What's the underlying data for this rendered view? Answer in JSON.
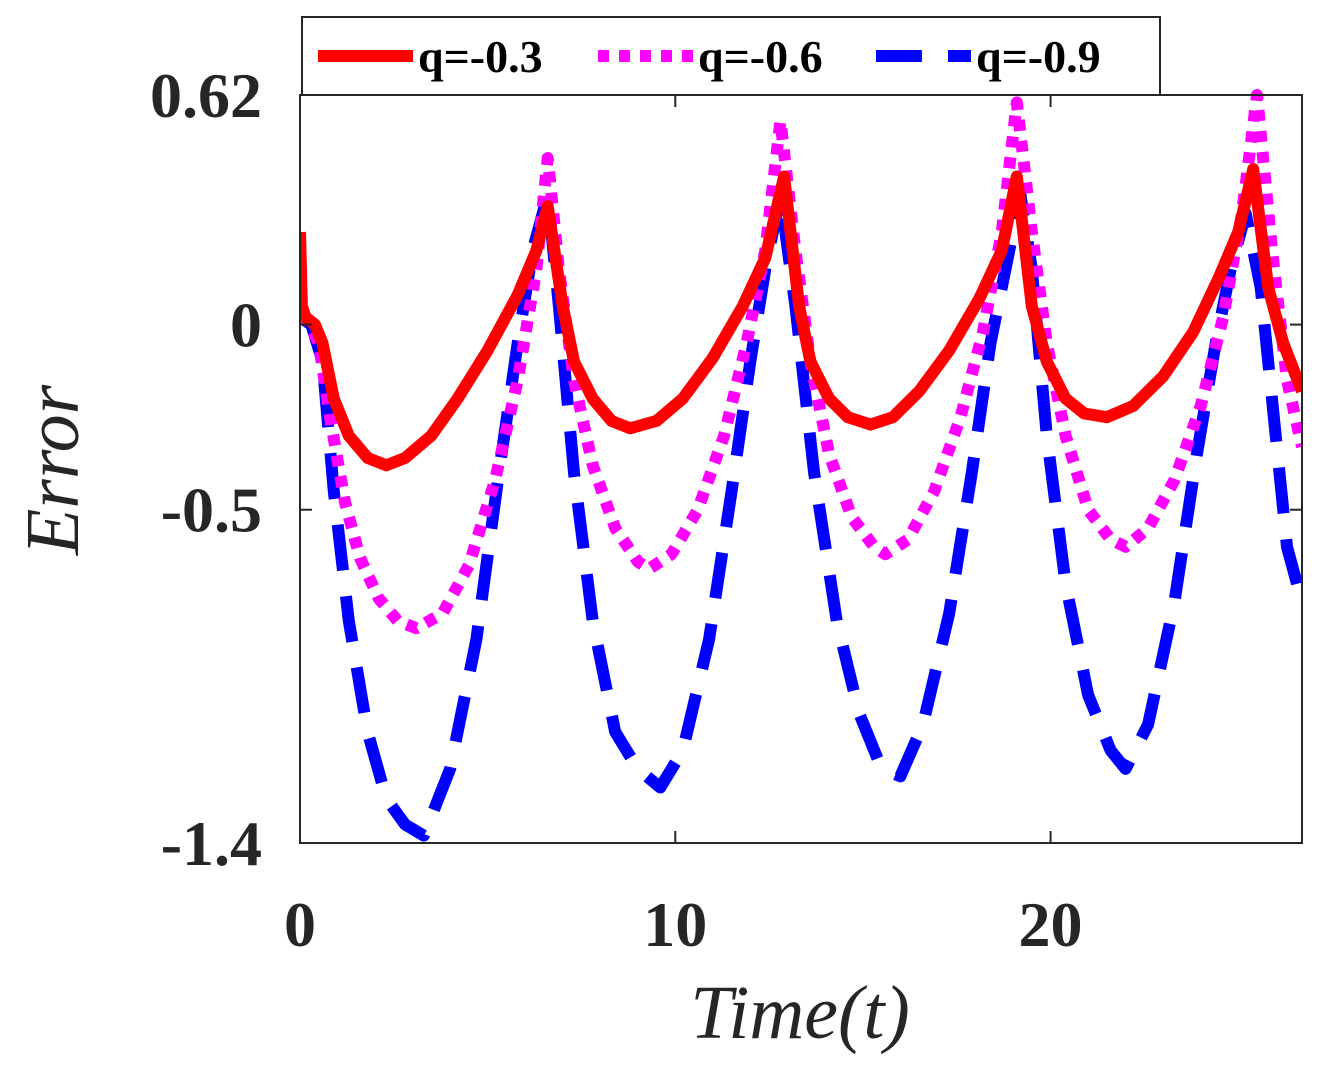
{
  "chart_data": {
    "type": "line",
    "xlabel": "Time(t)",
    "ylabel": "Error",
    "xlim": [
      0,
      26.7
    ],
    "ylim": [
      -1.4,
      0.62
    ],
    "xticks": [
      {
        "value": 0,
        "label": "0"
      },
      {
        "value": 10,
        "label": "10"
      },
      {
        "value": 20,
        "label": "20"
      }
    ],
    "yticks": [
      {
        "value": 0.62,
        "label": "0.62"
      },
      {
        "value": 0,
        "label": "0"
      },
      {
        "value": -0.5,
        "label": "-0.5"
      },
      {
        "value": -1.4,
        "label": "-1.4"
      }
    ],
    "grid": false,
    "legend_position": "top",
    "series": [
      {
        "name": "q=-0.3",
        "color": "#ff0000",
        "style": "solid",
        "points": [
          [
            0.0,
            0.25
          ],
          [
            0.05,
            0.05
          ],
          [
            0.15,
            0.02
          ],
          [
            0.4,
            0.0
          ],
          [
            0.6,
            -0.05
          ],
          [
            0.9,
            -0.2
          ],
          [
            1.3,
            -0.3
          ],
          [
            1.8,
            -0.36
          ],
          [
            2.3,
            -0.38
          ],
          [
            2.8,
            -0.36
          ],
          [
            3.5,
            -0.3
          ],
          [
            4.2,
            -0.2
          ],
          [
            5.0,
            -0.07
          ],
          [
            5.8,
            0.08
          ],
          [
            6.3,
            0.2
          ],
          [
            6.6,
            0.32
          ],
          [
            7.0,
            0.05
          ],
          [
            7.3,
            -0.1
          ],
          [
            7.8,
            -0.2
          ],
          [
            8.3,
            -0.26
          ],
          [
            8.8,
            -0.28
          ],
          [
            9.5,
            -0.26
          ],
          [
            10.2,
            -0.2
          ],
          [
            11.0,
            -0.09
          ],
          [
            11.8,
            0.05
          ],
          [
            12.4,
            0.18
          ],
          [
            12.9,
            0.4
          ],
          [
            13.3,
            0.05
          ],
          [
            13.6,
            -0.1
          ],
          [
            14.1,
            -0.2
          ],
          [
            14.6,
            -0.25
          ],
          [
            15.2,
            -0.27
          ],
          [
            15.8,
            -0.25
          ],
          [
            16.5,
            -0.18
          ],
          [
            17.3,
            -0.07
          ],
          [
            18.1,
            0.07
          ],
          [
            18.7,
            0.2
          ],
          [
            19.1,
            0.4
          ],
          [
            19.5,
            0.05
          ],
          [
            19.9,
            -0.1
          ],
          [
            20.4,
            -0.2
          ],
          [
            20.9,
            -0.24
          ],
          [
            21.5,
            -0.25
          ],
          [
            22.2,
            -0.22
          ],
          [
            23.0,
            -0.14
          ],
          [
            23.8,
            -0.02
          ],
          [
            24.5,
            0.13
          ],
          [
            25.0,
            0.25
          ],
          [
            25.4,
            0.42
          ],
          [
            25.8,
            0.1
          ],
          [
            26.2,
            -0.05
          ],
          [
            26.7,
            -0.18
          ]
        ]
      },
      {
        "name": "q=-0.6",
        "color": "#ff00ff",
        "style": "dotted",
        "points": [
          [
            0.0,
            0.02
          ],
          [
            0.2,
            0.01
          ],
          [
            0.5,
            -0.05
          ],
          [
            0.8,
            -0.25
          ],
          [
            1.2,
            -0.48
          ],
          [
            1.6,
            -0.63
          ],
          [
            2.1,
            -0.74
          ],
          [
            2.6,
            -0.8
          ],
          [
            3.1,
            -0.82
          ],
          [
            3.8,
            -0.78
          ],
          [
            4.5,
            -0.65
          ],
          [
            5.2,
            -0.42
          ],
          [
            5.8,
            -0.15
          ],
          [
            6.3,
            0.15
          ],
          [
            6.6,
            0.45
          ],
          [
            6.9,
            0.15
          ],
          [
            7.3,
            -0.15
          ],
          [
            7.8,
            -0.38
          ],
          [
            8.4,
            -0.55
          ],
          [
            9.0,
            -0.64
          ],
          [
            9.3,
            -0.66
          ],
          [
            9.9,
            -0.62
          ],
          [
            10.6,
            -0.5
          ],
          [
            11.3,
            -0.3
          ],
          [
            11.9,
            -0.05
          ],
          [
            12.4,
            0.2
          ],
          [
            12.8,
            0.55
          ],
          [
            13.2,
            0.2
          ],
          [
            13.6,
            -0.1
          ],
          [
            14.1,
            -0.35
          ],
          [
            14.7,
            -0.52
          ],
          [
            15.3,
            -0.6
          ],
          [
            15.6,
            -0.62
          ],
          [
            16.2,
            -0.58
          ],
          [
            16.9,
            -0.45
          ],
          [
            17.6,
            -0.25
          ],
          [
            18.2,
            -0.02
          ],
          [
            18.7,
            0.25
          ],
          [
            19.1,
            0.6
          ],
          [
            19.5,
            0.25
          ],
          [
            19.9,
            -0.05
          ],
          [
            20.4,
            -0.3
          ],
          [
            21.0,
            -0.5
          ],
          [
            21.6,
            -0.58
          ],
          [
            22.0,
            -0.6
          ],
          [
            22.6,
            -0.55
          ],
          [
            23.3,
            -0.42
          ],
          [
            24.0,
            -0.22
          ],
          [
            24.6,
            0.02
          ],
          [
            25.1,
            0.3
          ],
          [
            25.5,
            0.62
          ],
          [
            25.9,
            0.2
          ],
          [
            26.3,
            -0.15
          ],
          [
            26.7,
            -0.33
          ]
        ]
      },
      {
        "name": "q=-0.9",
        "color": "#0000ff",
        "style": "dashed",
        "points": [
          [
            0.0,
            0.02
          ],
          [
            0.3,
            0.0
          ],
          [
            0.6,
            -0.1
          ],
          [
            0.9,
            -0.45
          ],
          [
            1.3,
            -0.8
          ],
          [
            1.8,
            -1.1
          ],
          [
            2.3,
            -1.28
          ],
          [
            2.8,
            -1.35
          ],
          [
            3.3,
            -1.38
          ],
          [
            4.0,
            -1.2
          ],
          [
            4.7,
            -0.85
          ],
          [
            5.3,
            -0.4
          ],
          [
            5.8,
            -0.05
          ],
          [
            6.2,
            0.2
          ],
          [
            6.6,
            0.35
          ],
          [
            6.9,
            0.05
          ],
          [
            7.3,
            -0.4
          ],
          [
            7.8,
            -0.8
          ],
          [
            8.4,
            -1.1
          ],
          [
            9.0,
            -1.2
          ],
          [
            9.6,
            -1.25
          ],
          [
            10.2,
            -1.15
          ],
          [
            10.9,
            -0.85
          ],
          [
            11.5,
            -0.45
          ],
          [
            12.0,
            -0.1
          ],
          [
            12.4,
            0.15
          ],
          [
            12.8,
            0.35
          ],
          [
            13.2,
            0.05
          ],
          [
            13.7,
            -0.4
          ],
          [
            14.3,
            -0.8
          ],
          [
            14.9,
            -1.05
          ],
          [
            15.5,
            -1.2
          ],
          [
            16.0,
            -1.22
          ],
          [
            16.6,
            -1.08
          ],
          [
            17.3,
            -0.78
          ],
          [
            17.9,
            -0.4
          ],
          [
            18.4,
            -0.05
          ],
          [
            18.8,
            0.15
          ],
          [
            19.2,
            0.35
          ],
          [
            19.5,
            0.15
          ],
          [
            19.9,
            -0.3
          ],
          [
            20.4,
            -0.7
          ],
          [
            21.0,
            -1.0
          ],
          [
            21.6,
            -1.15
          ],
          [
            22.0,
            -1.2
          ],
          [
            22.6,
            -1.08
          ],
          [
            23.3,
            -0.75
          ],
          [
            23.9,
            -0.35
          ],
          [
            24.4,
            -0.05
          ],
          [
            24.8,
            0.15
          ],
          [
            25.2,
            0.3
          ],
          [
            25.6,
            0.1
          ],
          [
            26.0,
            -0.3
          ],
          [
            26.3,
            -0.6
          ],
          [
            26.7,
            -0.75
          ]
        ]
      }
    ]
  }
}
